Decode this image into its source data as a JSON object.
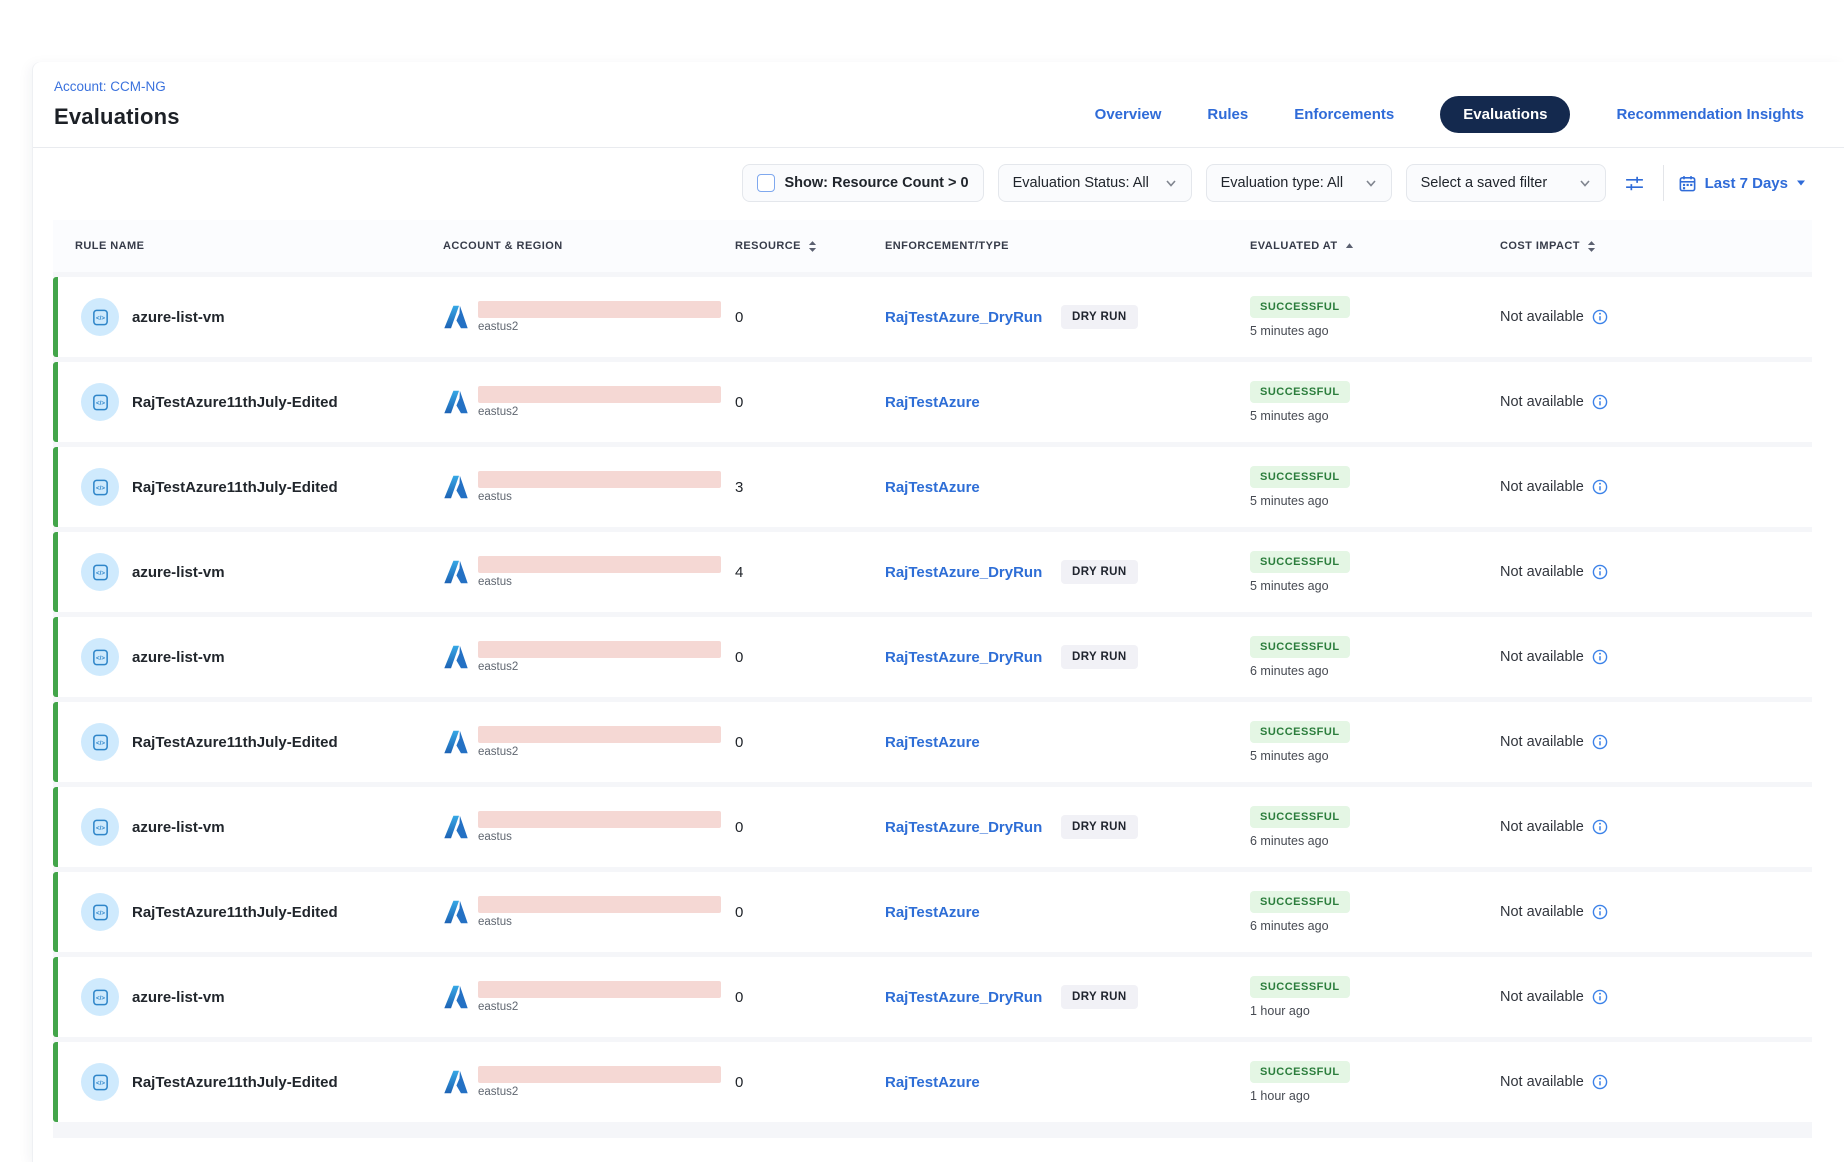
{
  "header": {
    "account_label": "Account: CCM-NG",
    "page_title": "Evaluations",
    "nav": [
      {
        "label": "Overview",
        "active": false
      },
      {
        "label": "Rules",
        "active": false
      },
      {
        "label": "Enforcements",
        "active": false
      },
      {
        "label": "Evaluations",
        "active": true
      },
      {
        "label": "Recommendation Insights",
        "active": false
      }
    ]
  },
  "filters": {
    "resource_count_label": "Show: Resource Count > 0",
    "resource_count_checked": false,
    "status_label": "Evaluation Status: All",
    "type_label": "Evaluation type: All",
    "saved_filter_placeholder": "Select a saved filter",
    "date_range_label": "Last 7 Days"
  },
  "table": {
    "columns": [
      {
        "label": "RULE NAME",
        "sort": "none"
      },
      {
        "label": "ACCOUNT & REGION",
        "sort": "none"
      },
      {
        "label": "RESOURCE",
        "sort": "both"
      },
      {
        "label": "ENFORCEMENT/TYPE",
        "sort": "none"
      },
      {
        "label": "EVALUATED AT",
        "sort": "asc"
      },
      {
        "label": "COST IMPACT",
        "sort": "both"
      }
    ],
    "badges": {
      "dry_run": "DRY RUN"
    },
    "rows": [
      {
        "rule_name": "azure-list-vm",
        "region": "eastus2",
        "resource": "0",
        "enforcement": "RajTestAzure_DryRun",
        "dry_run": true,
        "status": "SUCCESSFUL",
        "evaluated": "5 minutes ago",
        "cost_impact": "Not available"
      },
      {
        "rule_name": "RajTestAzure11thJuly-Edited",
        "region": "eastus2",
        "resource": "0",
        "enforcement": "RajTestAzure",
        "dry_run": false,
        "status": "SUCCESSFUL",
        "evaluated": "5 minutes ago",
        "cost_impact": "Not available"
      },
      {
        "rule_name": "RajTestAzure11thJuly-Edited",
        "region": "eastus",
        "resource": "3",
        "enforcement": "RajTestAzure",
        "dry_run": false,
        "status": "SUCCESSFUL",
        "evaluated": "5 minutes ago",
        "cost_impact": "Not available"
      },
      {
        "rule_name": "azure-list-vm",
        "region": "eastus",
        "resource": "4",
        "enforcement": "RajTestAzure_DryRun",
        "dry_run": true,
        "status": "SUCCESSFUL",
        "evaluated": "5 minutes ago",
        "cost_impact": "Not available"
      },
      {
        "rule_name": "azure-list-vm",
        "region": "eastus2",
        "resource": "0",
        "enforcement": "RajTestAzure_DryRun",
        "dry_run": true,
        "status": "SUCCESSFUL",
        "evaluated": "6 minutes ago",
        "cost_impact": "Not available"
      },
      {
        "rule_name": "RajTestAzure11thJuly-Edited",
        "region": "eastus2",
        "resource": "0",
        "enforcement": "RajTestAzure",
        "dry_run": false,
        "status": "SUCCESSFUL",
        "evaluated": "5 minutes ago",
        "cost_impact": "Not available"
      },
      {
        "rule_name": "azure-list-vm",
        "region": "eastus",
        "resource": "0",
        "enforcement": "RajTestAzure_DryRun",
        "dry_run": true,
        "status": "SUCCESSFUL",
        "evaluated": "6 minutes ago",
        "cost_impact": "Not available"
      },
      {
        "rule_name": "RajTestAzure11thJuly-Edited",
        "region": "eastus",
        "resource": "0",
        "enforcement": "RajTestAzure",
        "dry_run": false,
        "status": "SUCCESSFUL",
        "evaluated": "6 minutes ago",
        "cost_impact": "Not available"
      },
      {
        "rule_name": "azure-list-vm",
        "region": "eastus2",
        "resource": "0",
        "enforcement": "RajTestAzure_DryRun",
        "dry_run": true,
        "status": "SUCCESSFUL",
        "evaluated": "1 hour ago",
        "cost_impact": "Not available"
      },
      {
        "rule_name": "RajTestAzure11thJuly-Edited",
        "region": "eastus2",
        "resource": "0",
        "enforcement": "RajTestAzure",
        "dry_run": false,
        "status": "SUCCESSFUL",
        "evaluated": "1 hour ago",
        "cost_impact": "Not available"
      }
    ]
  },
  "colors": {
    "accent_blue": "#2f6bd8",
    "active_pill_navy": "#14294e",
    "row_strip_green": "#43a54a",
    "success_badge_bg": "#e4f6e4",
    "success_badge_text": "#2b7d3c",
    "redaction_pink": "#f5d8d4",
    "rule_icon_circle": "#cfeafd"
  }
}
